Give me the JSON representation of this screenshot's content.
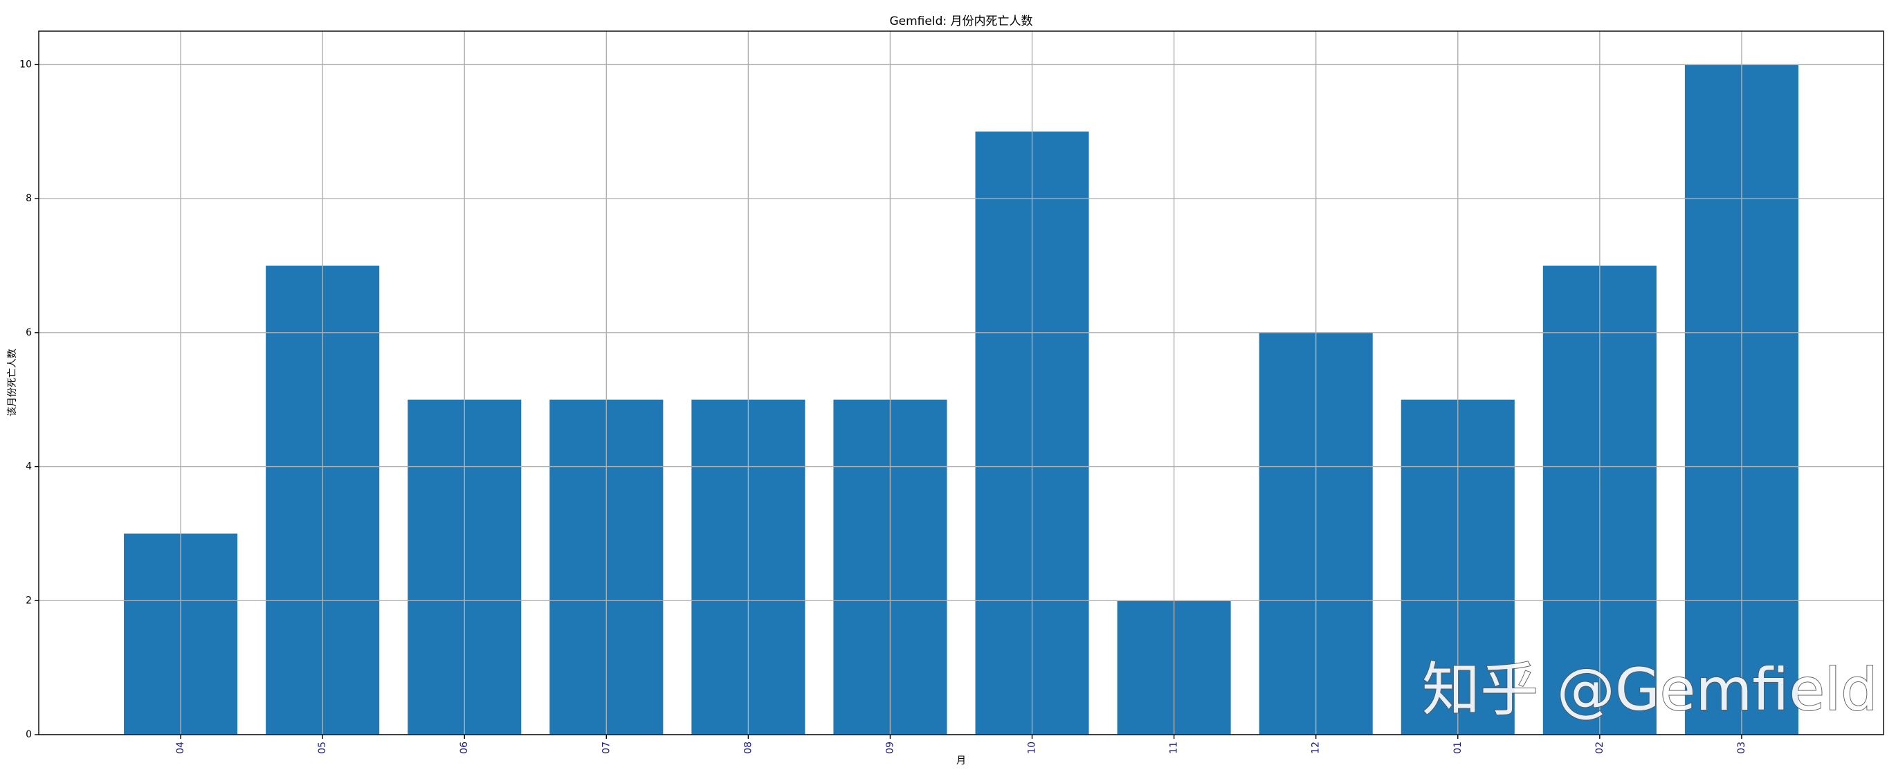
{
  "chart_data": {
    "type": "bar",
    "title": "Gemfield: 月份内死亡人数",
    "x_label": "月",
    "y_label": "该月份死亡人数",
    "categories": [
      "04",
      "05",
      "06",
      "07",
      "08",
      "09",
      "10",
      "11",
      "12",
      "01",
      "02",
      "03"
    ],
    "values": [
      3,
      7,
      5,
      5,
      5,
      5,
      9,
      2,
      6,
      5,
      7,
      10
    ],
    "color": "#1f77b4",
    "ylim": [
      0,
      10.5
    ],
    "yticks": [
      0,
      2,
      4,
      6,
      8,
      10
    ],
    "grid": true,
    "watermark": "知乎 @Gemfield"
  }
}
